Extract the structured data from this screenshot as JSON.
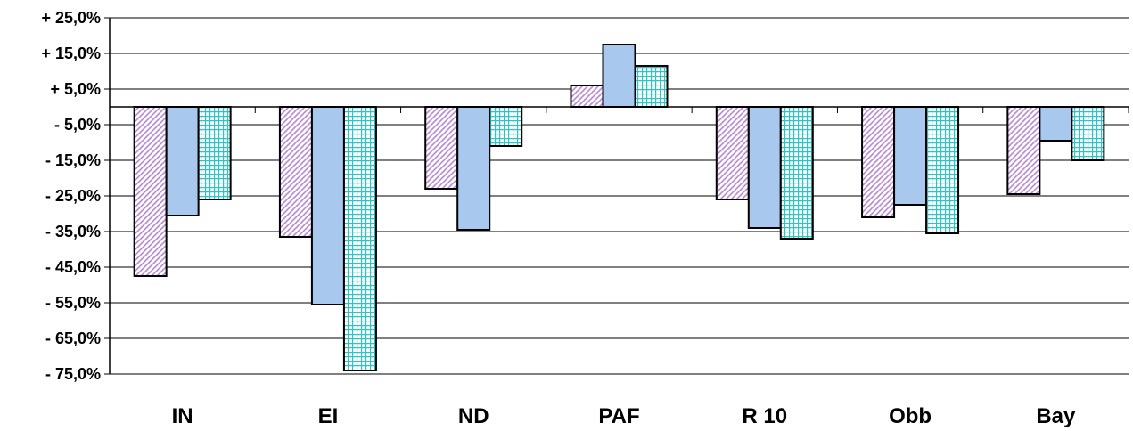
{
  "chart_data": {
    "type": "bar",
    "categories": [
      "IN",
      "EI",
      "ND",
      "PAF",
      "R 10",
      "Obb",
      "Bay"
    ],
    "series": [
      {
        "values": [
          -47.5,
          -36.5,
          -23.0,
          6.0,
          -26.0,
          -31.0,
          -24.5
        ],
        "fill": "#c8a0e0",
        "pattern": "diagonal-hatch"
      },
      {
        "values": [
          -30.5,
          -55.5,
          -34.5,
          17.5,
          -34.0,
          -27.5,
          -9.5
        ],
        "fill": "#a8c8ee",
        "pattern": "solid"
      },
      {
        "values": [
          -26.0,
          -74.0,
          -11.0,
          11.5,
          -37.0,
          -35.5,
          -15.0
        ],
        "fill": "#40d0d0",
        "pattern": "grid"
      }
    ],
    "ytick_labels": [
      "+ 25,0%",
      "+ 15,0%",
      "+ 5,0%",
      "- 5,0%",
      "- 15,0%",
      "- 25,0%",
      "- 35,0%",
      "- 45,0%",
      "- 55,0%",
      "- 65,0%",
      "- 75,0%"
    ],
    "ytick_values": [
      25,
      15,
      5,
      -5,
      -15,
      -25,
      -35,
      -45,
      -55,
      -65,
      -75
    ],
    "ylim": [
      -75,
      25
    ],
    "grid": true,
    "legend": "none"
  }
}
